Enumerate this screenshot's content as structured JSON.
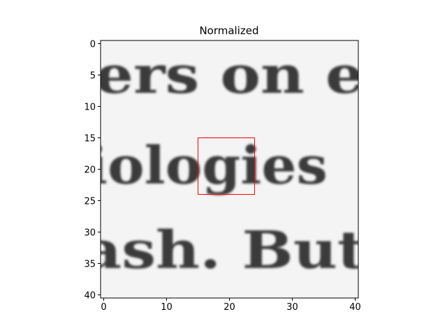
{
  "chart_data": {
    "type": "heatmap",
    "title": "Normalized",
    "xlabel": "",
    "ylabel": "",
    "x_ticks": [
      0,
      10,
      20,
      30,
      40
    ],
    "y_ticks": [
      0,
      5,
      10,
      15,
      20,
      25,
      30,
      35,
      40
    ],
    "xlim": [
      -0.5,
      40.5
    ],
    "ylim": [
      40.5,
      -0.5
    ],
    "grid": false,
    "colormap": "gray",
    "image_text_lines": [
      "ers on e",
      "iologies",
      "ash. But"
    ],
    "highlight_box": {
      "x": [
        15,
        24
      ],
      "y": [
        15,
        24
      ],
      "color": "#ff0000"
    }
  }
}
